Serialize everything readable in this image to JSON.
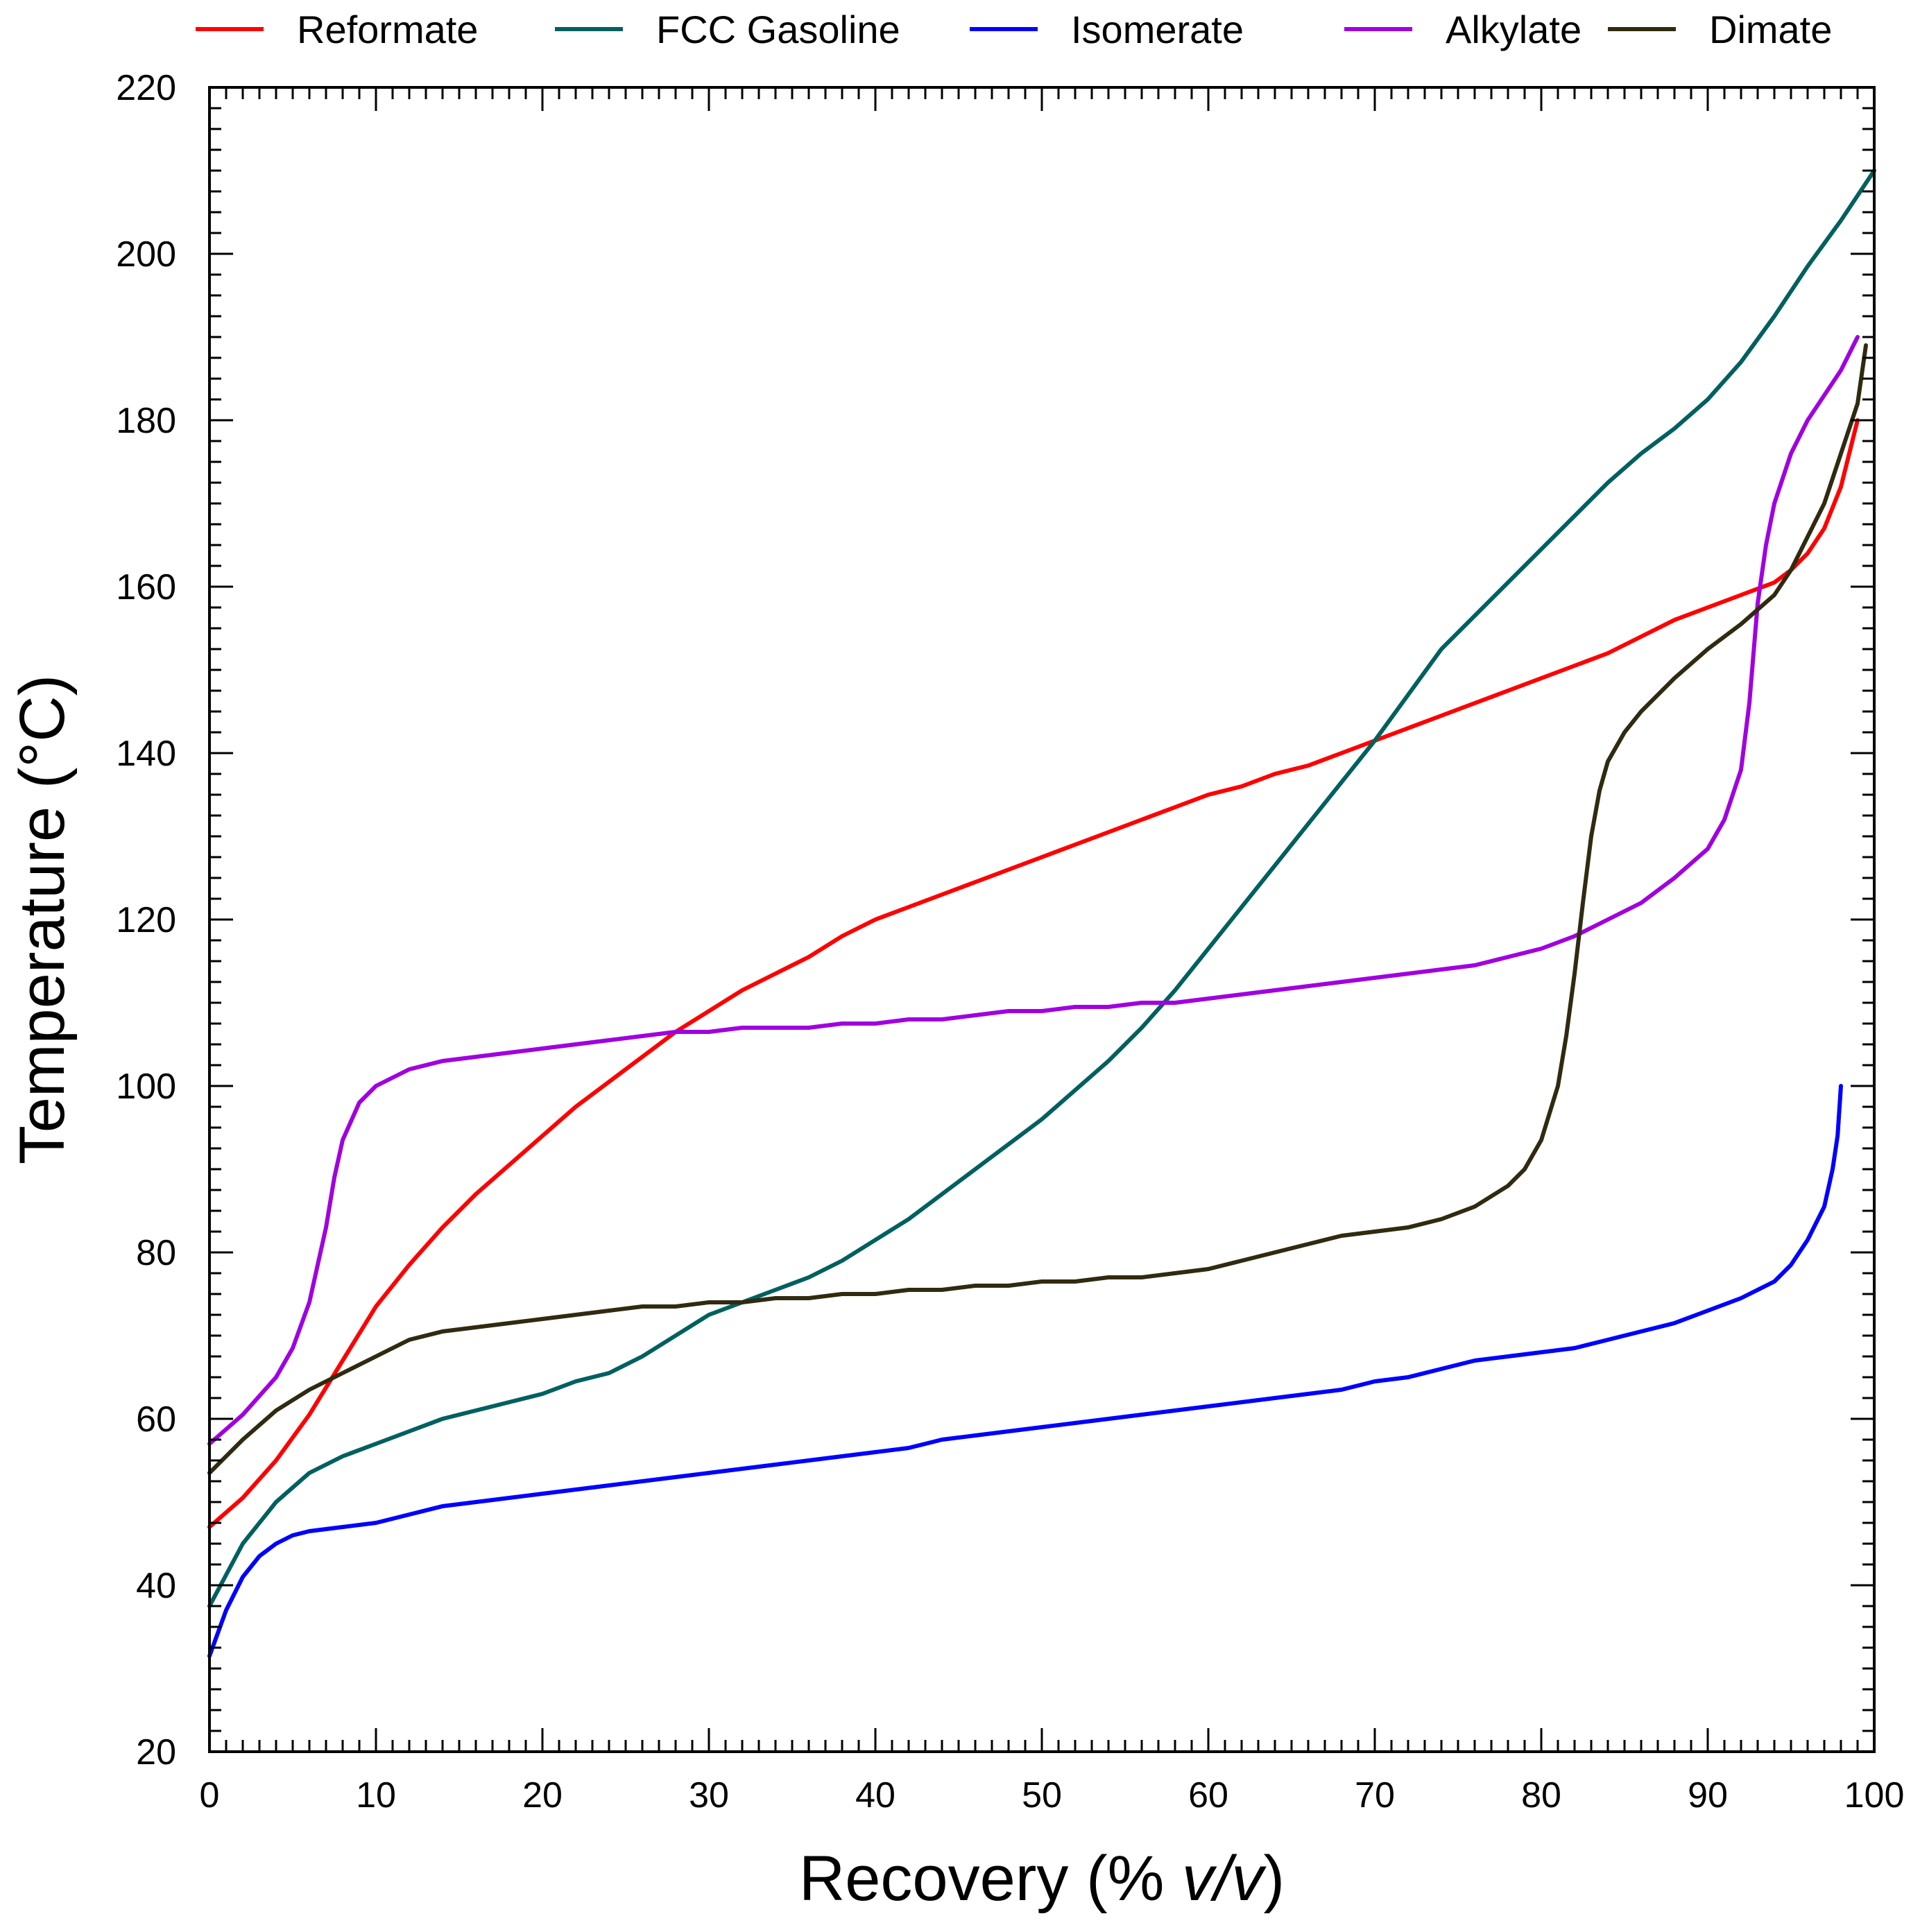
{
  "chart_data": {
    "type": "line",
    "title": "",
    "xlabel": "Recovery (% v/v)",
    "xlabel_prefix": "Recovery (% ",
    "xlabel_italic": "v/v",
    "xlabel_suffix": ")",
    "ylabel": "Temperature (°C)",
    "xlim": [
      0,
      100
    ],
    "ylim": [
      20,
      220
    ],
    "xticks": [
      0,
      10,
      20,
      30,
      40,
      50,
      60,
      70,
      80,
      90,
      100
    ],
    "yticks": [
      20,
      40,
      60,
      80,
      100,
      120,
      140,
      160,
      180,
      200,
      220
    ],
    "grid": false,
    "legend_position": "top",
    "series": [
      {
        "name": "Reformate",
        "color": "#ff0000",
        "x": [
          0,
          2,
          4,
          6,
          8,
          10,
          12,
          14,
          16,
          18,
          20,
          22,
          24,
          26,
          28,
          30,
          32,
          34,
          36,
          38,
          40,
          42,
          44,
          46,
          48,
          50,
          52,
          54,
          56,
          58,
          60,
          62,
          64,
          66,
          68,
          70,
          72,
          74,
          76,
          78,
          80,
          82,
          84,
          86,
          88,
          90,
          92,
          94,
          95,
          96,
          97,
          98,
          99
        ],
        "y": [
          47,
          50.5,
          55,
          60.5,
          67,
          73.5,
          78.5,
          83,
          87,
          90.5,
          94,
          97.5,
          100.5,
          103.5,
          106.5,
          109,
          111.5,
          113.5,
          115.5,
          118,
          120,
          121.5,
          123,
          124.5,
          126,
          127.5,
          129,
          130.5,
          132,
          133.5,
          135,
          136,
          137.5,
          138.5,
          140,
          141.5,
          143,
          144.5,
          146,
          147.5,
          149,
          150.5,
          152,
          154,
          156,
          157.5,
          159,
          160.5,
          162,
          164,
          167,
          172,
          180
        ]
      },
      {
        "name": "FCC Gasoline",
        "color": "#006060",
        "x": [
          0,
          2,
          4,
          6,
          8,
          10,
          12,
          14,
          16,
          18,
          20,
          22,
          24,
          26,
          28,
          30,
          32,
          34,
          36,
          38,
          40,
          42,
          44,
          46,
          48,
          50,
          52,
          54,
          56,
          58,
          60,
          62,
          64,
          66,
          68,
          70,
          72,
          74,
          76,
          78,
          80,
          82,
          84,
          86,
          88,
          90,
          92,
          94,
          96,
          98,
          100
        ],
        "y": [
          37.5,
          45,
          50,
          53.5,
          55.5,
          57,
          58.5,
          60,
          61,
          62,
          63,
          64.5,
          65.5,
          67.5,
          70,
          72.5,
          74,
          75.5,
          77,
          79,
          81.5,
          84,
          87,
          90,
          93,
          96,
          99.5,
          103,
          107,
          111.5,
          116.5,
          121.5,
          126.5,
          131.5,
          136.5,
          141.5,
          147,
          152.5,
          156.5,
          160.5,
          164.5,
          168.5,
          172.5,
          176,
          179,
          182.5,
          187,
          192.5,
          198.5,
          204,
          210
        ]
      },
      {
        "name": "Isomerate",
        "color": "#0000ff",
        "x": [
          0,
          1,
          2,
          3,
          4,
          5,
          6,
          8,
          10,
          12,
          14,
          16,
          18,
          20,
          22,
          24,
          26,
          28,
          30,
          32,
          34,
          36,
          38,
          40,
          42,
          44,
          46,
          48,
          50,
          52,
          54,
          56,
          58,
          60,
          62,
          64,
          66,
          68,
          70,
          72,
          74,
          76,
          78,
          80,
          82,
          84,
          86,
          88,
          90,
          92,
          94,
          95,
          96,
          97,
          97.5,
          97.8,
          98,
          98
        ],
        "y": [
          31.5,
          37,
          41,
          43.5,
          45,
          46,
          46.5,
          47,
          47.5,
          48.5,
          49.5,
          50,
          50.5,
          51,
          51.5,
          52,
          52.5,
          53,
          53.5,
          54,
          54.5,
          55,
          55.5,
          56,
          56.5,
          57.5,
          58,
          58.5,
          59,
          59.5,
          60,
          60.5,
          61,
          61.5,
          62,
          62.5,
          63,
          63.5,
          64.5,
          65,
          66,
          67,
          67.5,
          68,
          68.5,
          69.5,
          70.5,
          71.5,
          73,
          74.5,
          76.5,
          78.5,
          81.5,
          85.5,
          90,
          94,
          100,
          100
        ]
      },
      {
        "name": "Alkylate",
        "color": "#a000e0",
        "x": [
          0,
          2,
          4,
          5,
          6,
          7,
          7.5,
          8,
          9,
          10,
          12,
          14,
          16,
          18,
          20,
          22,
          24,
          26,
          28,
          30,
          32,
          34,
          36,
          38,
          40,
          42,
          44,
          46,
          48,
          50,
          52,
          54,
          56,
          58,
          60,
          62,
          64,
          66,
          68,
          70,
          72,
          74,
          76,
          78,
          80,
          82,
          84,
          86,
          88,
          90,
          91,
          92,
          92.5,
          93,
          93.5,
          94,
          95,
          96,
          97,
          98,
          99
        ],
        "y": [
          57,
          60.5,
          65,
          68.5,
          74,
          83,
          89,
          93.5,
          98,
          100,
          102,
          103,
          103.5,
          104,
          104.5,
          105,
          105.5,
          106,
          106.5,
          106.5,
          107,
          107,
          107,
          107.5,
          107.5,
          108,
          108,
          108.5,
          109,
          109,
          109.5,
          109.5,
          110,
          110,
          110.5,
          111,
          111.5,
          112,
          112.5,
          113,
          113.5,
          114,
          114.5,
          115.5,
          116.5,
          118,
          120,
          122,
          125,
          128.5,
          132,
          138,
          146,
          158,
          165,
          170,
          176,
          180,
          183,
          186,
          190
        ]
      },
      {
        "name": "Dimate",
        "color": "#302a10",
        "x": [
          0,
          2,
          4,
          6,
          8,
          10,
          12,
          14,
          16,
          18,
          20,
          22,
          24,
          26,
          28,
          30,
          32,
          34,
          36,
          38,
          40,
          42,
          44,
          46,
          48,
          50,
          52,
          54,
          56,
          58,
          60,
          62,
          64,
          66,
          68,
          70,
          72,
          74,
          76,
          78,
          79,
          80,
          81,
          81.5,
          82,
          82.5,
          83,
          83.5,
          84,
          85,
          86,
          87,
          88,
          90,
          92,
          94,
          95,
          96,
          97,
          98,
          99,
          99.5
        ],
        "y": [
          53.5,
          57.5,
          61,
          63.5,
          65.5,
          67.5,
          69.5,
          70.5,
          71,
          71.5,
          72,
          72.5,
          73,
          73.5,
          73.5,
          74,
          74,
          74.5,
          74.5,
          75,
          75,
          75.5,
          75.5,
          76,
          76,
          76.5,
          76.5,
          77,
          77,
          77.5,
          78,
          79,
          80,
          81,
          82,
          82.5,
          83,
          84,
          85.5,
          88,
          90,
          93.5,
          100,
          106,
          113.5,
          122,
          130,
          135.5,
          139,
          142.5,
          145,
          147,
          149,
          152.5,
          155.5,
          159,
          162,
          166,
          170,
          176,
          182,
          189
        ]
      }
    ]
  }
}
